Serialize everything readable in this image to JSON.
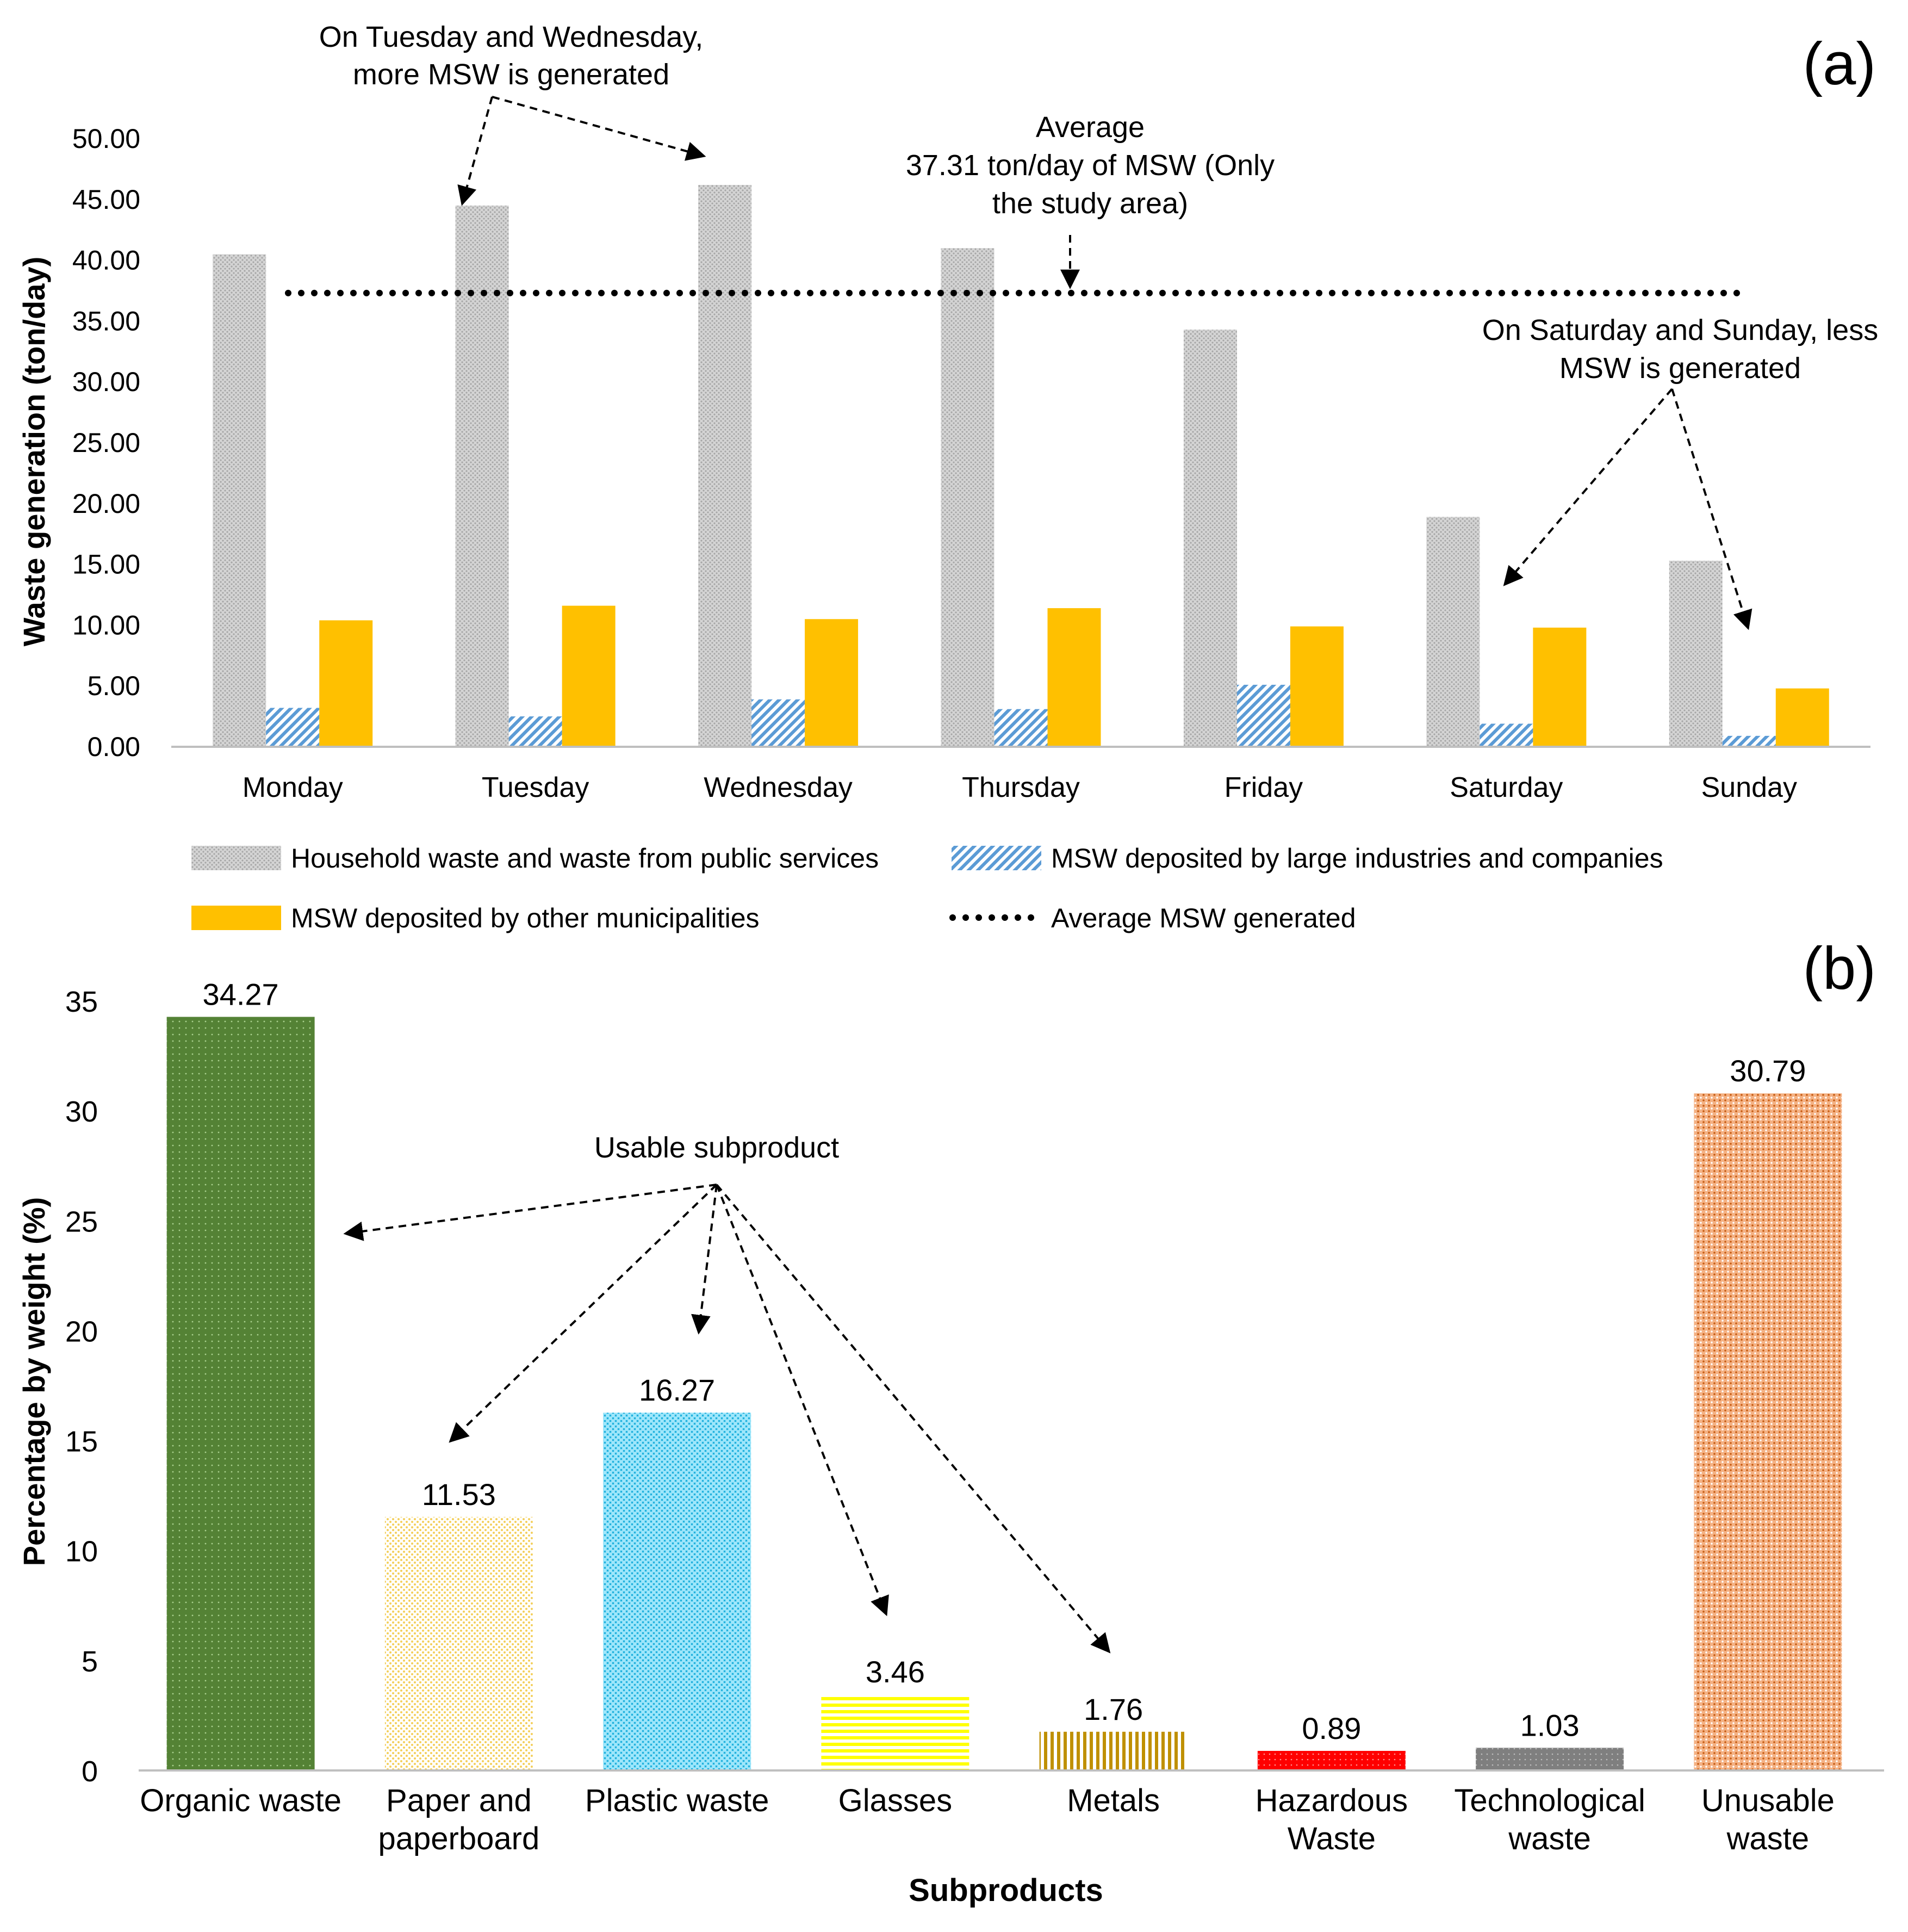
{
  "chart_data": [
    {
      "panel_label": "(a)",
      "type": "bar",
      "ylabel": "Waste generation (ton/day)",
      "ylim": [
        0,
        50
      ],
      "yticks": [
        "0.00",
        "5.00",
        "10.00",
        "15.00",
        "20.00",
        "25.00",
        "30.00",
        "35.00",
        "40.00",
        "45.00",
        "50.00"
      ],
      "categories": [
        "Monday",
        "Tuesday",
        "Wednesday",
        "Thursday",
        "Friday",
        "Saturday",
        "Sunday"
      ],
      "series": [
        {
          "name": "Household waste and waste from public services",
          "values": [
            40.5,
            44.5,
            46.2,
            41.0,
            34.3,
            18.9,
            15.3
          ],
          "color": "#c8c8c8"
        },
        {
          "name": "MSW deposited by large industries and companies",
          "values": [
            3.2,
            2.5,
            3.9,
            3.1,
            5.1,
            1.9,
            0.9
          ],
          "color": "#6fa8dc"
        },
        {
          "name": "MSW deposited by other municipalities",
          "values": [
            10.4,
            11.6,
            10.5,
            11.4,
            9.9,
            9.8,
            4.8
          ],
          "color": "#ffc000"
        }
      ],
      "average": {
        "name": "Average MSW generated",
        "value": 37.31
      },
      "annotations": {
        "weekday_line1": "On Tuesday and Wednesday,",
        "weekday_line2": "more MSW is generated",
        "average_line1": "Average",
        "average_line2": "37.31 ton/day of MSW (Only",
        "average_line3": "the study area)",
        "weekend_line1": "On Saturday and Sunday, less",
        "weekend_line2": "MSW is generated"
      },
      "legend_placement": "bottom"
    },
    {
      "panel_label": "(b)",
      "type": "bar",
      "xlabel": "Subproducts",
      "ylabel": "Percentage by weight (%)",
      "ylim": [
        0,
        35
      ],
      "yticks": [
        "0",
        "5",
        "10",
        "15",
        "20",
        "25",
        "30",
        "35"
      ],
      "categories": [
        [
          "Organic waste"
        ],
        [
          "Paper and",
          "paperboard"
        ],
        [
          "Plastic waste"
        ],
        [
          "Glasses"
        ],
        [
          "Metals"
        ],
        [
          "Hazardous",
          "Waste"
        ],
        [
          "Technological",
          "waste"
        ],
        [
          "Unusable",
          "waste"
        ]
      ],
      "values": [
        34.27,
        11.53,
        16.27,
        3.46,
        1.76,
        0.89,
        1.03,
        30.79
      ],
      "value_labels": [
        "34.27",
        "11.53",
        "16.27",
        "3.46",
        "1.76",
        "0.89",
        "1.03",
        "30.79"
      ],
      "colors": [
        "#548235",
        "#ffe699",
        "#5bd5f5",
        "#ffff00",
        "#bf9000",
        "#ff0000",
        "#808080",
        "#f4b183"
      ],
      "annotation": "Usable subproduct"
    }
  ]
}
